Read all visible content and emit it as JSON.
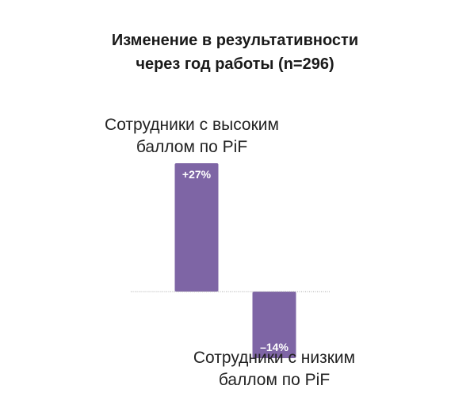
{
  "chart": {
    "title_lines": [
      "Изменение в результативности",
      "через год работы (n=296)"
    ]
  },
  "colors": {
    "bar": "#7e65a5",
    "baseline": "#a8a8a8",
    "text": "#222222"
  },
  "chart_data": {
    "type": "bar",
    "title": "Изменение в результативности через год работы (n=296)",
    "categories": [
      "Сотрудники с высоким баллом по PiF",
      "Сотрудники с низким баллом по PiF"
    ],
    "category_label_lines": [
      [
        "Сотрудники с высоким",
        "баллом по PiF"
      ],
      [
        "Сотрудники с низким",
        "баллом по PiF"
      ]
    ],
    "values": [
      27,
      -14
    ],
    "value_labels": [
      "+27%",
      "–14%"
    ],
    "unit": "%",
    "xlabel": "",
    "ylabel": "",
    "ylim": [
      -14,
      27
    ],
    "grid": false,
    "legend": "none"
  }
}
